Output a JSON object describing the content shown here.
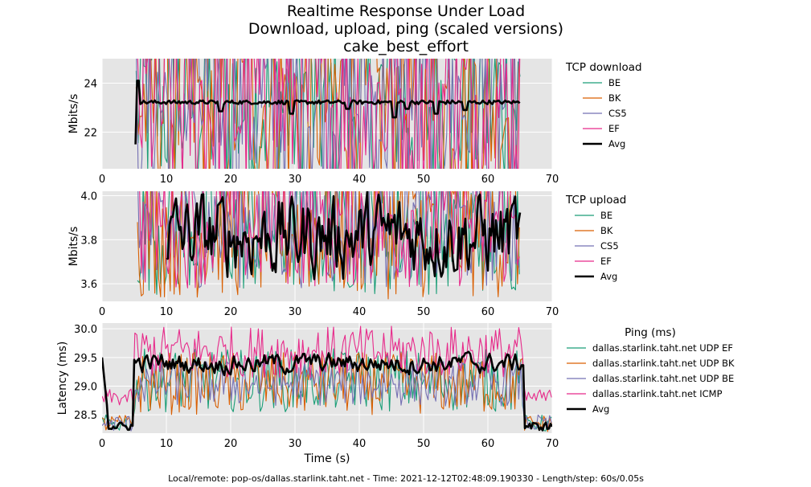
{
  "figure": {
    "title_lines": [
      "Realtime Response Under Load",
      "Download, upload, ping (scaled versions)",
      "cake_best_effort"
    ],
    "footer": "Local/remote: pop-os/dallas.starlink.taht.net - Time: 2021-12-12T02:48:09.190330 - Length/step: 60s/0.05s",
    "xlabel": "Time (s)"
  },
  "colors": {
    "teal": "#1b9e77",
    "orange": "#d95f02",
    "purple": "#7570b3",
    "pink": "#e7298a",
    "avg": "#000000",
    "panel_bg": "#e5e5e5",
    "grid": "#ffffff"
  },
  "chart_data": [
    {
      "type": "line",
      "id": "download",
      "ylabel": "Mbits/s",
      "xlim": [
        0,
        70
      ],
      "ylim": [
        20.5,
        25.0
      ],
      "x_ticks": [
        "0",
        "10",
        "20",
        "30",
        "40",
        "50",
        "60",
        "70"
      ],
      "y_ticks": [
        {
          "value": 22,
          "label": "22"
        },
        {
          "value": 24,
          "label": "24"
        }
      ],
      "legend_title": "TCP download",
      "series": [
        {
          "name": "BE",
          "color_key": "teal",
          "x_range": [
            5.3,
            65
          ],
          "center": 23.2,
          "amplitude": 4.2
        },
        {
          "name": "BK",
          "color_key": "orange",
          "x_range": [
            5.3,
            65
          ],
          "center": 23.2,
          "amplitude": 4.2
        },
        {
          "name": "CS5",
          "color_key": "purple",
          "x_range": [
            5.3,
            65
          ],
          "center": 23.2,
          "amplitude": 4.2
        },
        {
          "name": "EF",
          "color_key": "pink",
          "x_range": [
            5.3,
            65
          ],
          "center": 23.2,
          "amplitude": 4.4
        },
        {
          "name": "Avg",
          "color_key": "avg",
          "x_range": [
            5.2,
            65
          ],
          "center": 23.22,
          "amplitude": 0.08,
          "dips": [
            [
              5.5,
              24.1
            ],
            [
              18.5,
              22.85
            ],
            [
              29.5,
              22.75
            ],
            [
              38.3,
              22.95
            ],
            [
              45.5,
              22.6
            ],
            [
              47.5,
              22.95
            ],
            [
              52,
              22.75
            ],
            [
              56.5,
              22.9
            ]
          ]
        }
      ]
    },
    {
      "type": "line",
      "id": "upload",
      "ylabel": "Mbits/s",
      "xlim": [
        0,
        70
      ],
      "ylim": [
        3.52,
        4.02
      ],
      "x_ticks": [
        "0",
        "10",
        "20",
        "30",
        "40",
        "50",
        "60",
        "70"
      ],
      "y_ticks": [
        {
          "value": 3.6,
          "label": "3.6"
        },
        {
          "value": 3.8,
          "label": "3.8"
        },
        {
          "value": 4.0,
          "label": "4.0"
        }
      ],
      "legend_title": "TCP upload",
      "series": [
        {
          "name": "BE",
          "color_key": "teal",
          "x_range": [
            5.5,
            65
          ],
          "center": 3.85,
          "amplitude": 0.3
        },
        {
          "name": "BK",
          "color_key": "orange",
          "x_range": [
            5.5,
            65
          ],
          "center": 3.85,
          "amplitude": 0.32
        },
        {
          "name": "CS5",
          "color_key": "purple",
          "x_range": [
            5.5,
            65
          ],
          "center": 3.86,
          "amplitude": 0.28
        },
        {
          "name": "EF",
          "color_key": "pink",
          "x_range": [
            5.5,
            65
          ],
          "center": 3.88,
          "amplitude": 0.3
        },
        {
          "name": "Avg",
          "color_key": "avg",
          "x_range": [
            10,
            65
          ],
          "center": 3.82,
          "amplitude": 0.12
        }
      ]
    },
    {
      "type": "line",
      "id": "ping",
      "ylabel": "Latency (ms)",
      "xlabel": "Time (s)",
      "xlim": [
        0,
        70
      ],
      "ylim": [
        28.18,
        30.1
      ],
      "x_ticks": [
        "0",
        "10",
        "20",
        "30",
        "40",
        "50",
        "60",
        "70"
      ],
      "y_ticks": [
        {
          "value": 28.5,
          "label": "28.5"
        },
        {
          "value": 29.0,
          "label": "29.0"
        },
        {
          "value": 29.5,
          "label": "29.5"
        },
        {
          "value": 30.0,
          "label": "30.0"
        }
      ],
      "legend_title": "Ping (ms)",
      "series": [
        {
          "name": "dallas.starlink.taht.net UDP EF",
          "color_key": "teal",
          "x_range": [
            0,
            70
          ],
          "center": 29.1,
          "amplitude": 0.55
        },
        {
          "name": "dallas.starlink.taht.net UDP BK",
          "color_key": "orange",
          "x_range": [
            0,
            70
          ],
          "center": 29.05,
          "amplitude": 0.55
        },
        {
          "name": "dallas.starlink.taht.net UDP BE",
          "color_key": "purple",
          "x_range": [
            0,
            70
          ],
          "center": 29.05,
          "amplitude": 0.4
        },
        {
          "name": "dallas.starlink.taht.net ICMP",
          "color_key": "pink",
          "x_range": [
            0,
            70
          ],
          "center": 29.6,
          "amplitude": 0.45
        },
        {
          "name": "Avg",
          "color_key": "avg",
          "x_range": [
            0,
            70
          ],
          "center": 29.4,
          "amplitude": 0.15,
          "idle_level": 28.3,
          "load_range": [
            5,
            65.5
          ]
        }
      ]
    }
  ]
}
